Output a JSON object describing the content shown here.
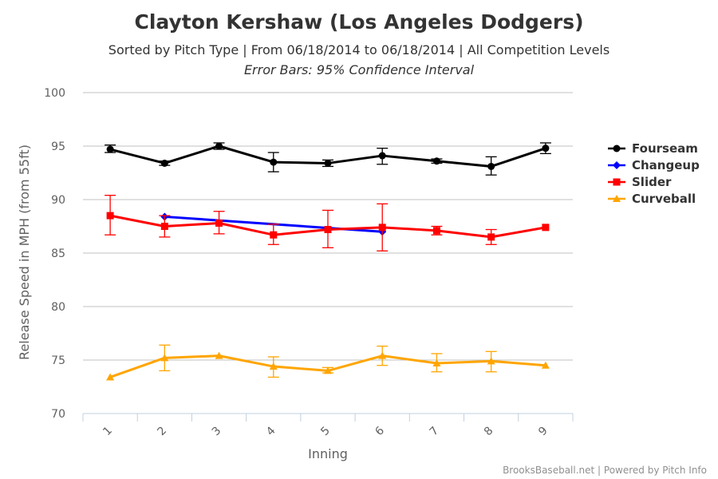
{
  "chart_data": {
    "type": "line",
    "title": "Clayton Kershaw (Los Angeles Dodgers)",
    "subtitle": "Sorted by Pitch Type | From 06/18/2014 to 06/18/2014 | All Competition Levels",
    "subtitle2": "Error Bars: 95% Confidence Interval",
    "xlabel": "Inning",
    "ylabel": "Release Speed in MPH (from 55ft)",
    "categories": [
      "1",
      "2",
      "3",
      "4",
      "5",
      "6",
      "7",
      "8",
      "9"
    ],
    "yticks": [
      70,
      75,
      80,
      85,
      90,
      95,
      100
    ],
    "ylim": [
      70,
      100
    ],
    "grid": true,
    "legend_position": "right",
    "credits": "BrooksBaseball.net | Powered by Pitch Info",
    "series": [
      {
        "name": "Fourseam",
        "color": "#000000",
        "marker": "circle",
        "points": [
          {
            "x": "1",
            "y": 94.7,
            "low": 94.4,
            "high": 95.1
          },
          {
            "x": "2",
            "y": 93.4,
            "low": 93.2,
            "high": 93.6
          },
          {
            "x": "3",
            "y": 95.0,
            "low": 94.7,
            "high": 95.3
          },
          {
            "x": "4",
            "y": 93.5,
            "low": 92.6,
            "high": 94.4
          },
          {
            "x": "5",
            "y": 93.4,
            "low": 93.1,
            "high": 93.7
          },
          {
            "x": "6",
            "y": 94.1,
            "low": 93.3,
            "high": 94.8
          },
          {
            "x": "7",
            "y": 93.6,
            "low": 93.4,
            "high": 93.8
          },
          {
            "x": "8",
            "y": 93.1,
            "low": 92.3,
            "high": 94.0
          },
          {
            "x": "9",
            "y": 94.8,
            "low": 94.3,
            "high": 95.3
          }
        ]
      },
      {
        "name": "Changeup",
        "color": "#0000ff",
        "marker": "diamond",
        "points": [
          {
            "x": "2",
            "y": 88.4
          },
          {
            "x": "6",
            "y": 87.0
          }
        ]
      },
      {
        "name": "Slider",
        "color": "#ff0000",
        "marker": "square",
        "points": [
          {
            "x": "1",
            "y": 88.5,
            "low": 86.7,
            "high": 90.4
          },
          {
            "x": "2",
            "y": 87.5,
            "low": 86.5,
            "high": 88.5
          },
          {
            "x": "3",
            "y": 87.8,
            "low": 86.8,
            "high": 88.9
          },
          {
            "x": "4",
            "y": 86.7,
            "low": 85.8,
            "high": 87.7
          },
          {
            "x": "5",
            "y": 87.2,
            "low": 85.5,
            "high": 89.0
          },
          {
            "x": "6",
            "y": 87.4,
            "low": 85.2,
            "high": 89.6
          },
          {
            "x": "7",
            "y": 87.1,
            "low": 86.7,
            "high": 87.5
          },
          {
            "x": "8",
            "y": 86.5,
            "low": 85.8,
            "high": 87.2
          },
          {
            "x": "9",
            "y": 87.4
          }
        ]
      },
      {
        "name": "Curveball",
        "color": "#ffa500",
        "marker": "triangle",
        "points": [
          {
            "x": "1",
            "y": 73.4
          },
          {
            "x": "2",
            "y": 75.2,
            "low": 74.0,
            "high": 76.4
          },
          {
            "x": "3",
            "y": 75.4
          },
          {
            "x": "4",
            "y": 74.4,
            "low": 73.4,
            "high": 75.3
          },
          {
            "x": "5",
            "y": 74.0,
            "low": 73.8,
            "high": 74.3
          },
          {
            "x": "6",
            "y": 75.4,
            "low": 74.5,
            "high": 76.3
          },
          {
            "x": "7",
            "y": 74.7,
            "low": 73.9,
            "high": 75.6
          },
          {
            "x": "8",
            "y": 74.9,
            "low": 73.9,
            "high": 75.8
          },
          {
            "x": "9",
            "y": 74.5
          }
        ]
      }
    ]
  }
}
